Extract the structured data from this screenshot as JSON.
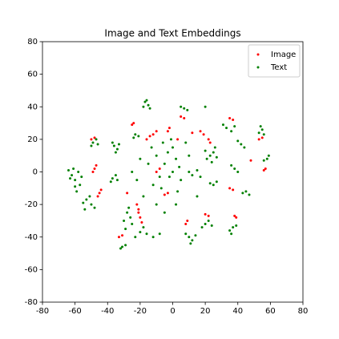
{
  "chart_data": {
    "type": "scatter",
    "title": "Image and Text Embeddings",
    "xlim": [
      -80,
      80
    ],
    "ylim": [
      -80,
      80
    ],
    "xticks": [
      -80,
      -60,
      -40,
      -20,
      0,
      20,
      40,
      60,
      80
    ],
    "yticks": [
      -80,
      -60,
      -40,
      -20,
      0,
      20,
      40,
      60,
      80
    ],
    "legend": "upper right",
    "series": [
      {
        "name": "Image",
        "color": "#ff0000",
        "x": [
          -48,
          -47,
          -49,
          -45,
          -44,
          -46,
          -50,
          -48,
          -25,
          -24,
          -12,
          -10,
          -14,
          -2,
          -3,
          5,
          7,
          17,
          19,
          22,
          23,
          35,
          37,
          53,
          55,
          57,
          56,
          -22,
          -21,
          -20,
          -19,
          -21,
          -5,
          -3,
          8,
          9,
          20,
          22,
          38,
          39,
          35,
          37,
          48,
          -33,
          -31,
          -28,
          -10,
          -8,
          3,
          12,
          -16
        ],
        "values": [
          2,
          4,
          0,
          -13,
          -11,
          -15,
          20,
          21,
          29,
          30,
          23,
          25,
          22,
          27,
          25,
          34,
          33,
          25,
          23,
          20,
          18,
          33,
          32,
          20,
          21,
          2,
          1,
          -20,
          -23,
          -28,
          -31,
          -25,
          -14,
          -13,
          -32,
          -30,
          -26,
          -27,
          -27,
          -28,
          -10,
          -11,
          7,
          -40,
          -39,
          -13,
          0,
          2,
          20,
          24,
          20
        ]
      },
      {
        "name": "Text",
        "color": "#008000",
        "x": [
          -62,
          -60,
          -58,
          -61,
          -57,
          -59,
          -63,
          -56,
          -60,
          -64,
          -53,
          -50,
          -55,
          -51,
          -48,
          -54,
          -49,
          -47,
          -50,
          -46,
          -36,
          -34,
          -37,
          -33,
          -35,
          -37,
          -35,
          -38,
          -34,
          -28,
          -26,
          -30,
          -27,
          -25,
          -29,
          -20,
          -16,
          -23,
          -12,
          -18,
          -8,
          -31,
          -29,
          -32,
          -23,
          -21,
          -24,
          -17,
          -15,
          -18,
          -14,
          -16,
          7,
          5,
          9,
          -10,
          -5,
          0,
          -3,
          2,
          -8,
          5,
          -15,
          -12,
          -2,
          0,
          3,
          -20,
          -6,
          -1,
          -18,
          -10,
          -5,
          2,
          -25,
          -22,
          4,
          -7,
          10,
          8,
          -13,
          10,
          12,
          8,
          14,
          11,
          20,
          22,
          18,
          24,
          23,
          25,
          21,
          27,
          24,
          20,
          26,
          33,
          36,
          31,
          38,
          42,
          44,
          40,
          38,
          40,
          36,
          45,
          47,
          43,
          37,
          35,
          39,
          36,
          55,
          54,
          56,
          53,
          58,
          56,
          59,
          25,
          23,
          27,
          10,
          12,
          15,
          17,
          20,
          15
        ],
        "values": [
          -2,
          -5,
          0,
          2,
          -8,
          -12,
          -4,
          -3,
          -9,
          1,
          -17,
          -20,
          -19,
          -15,
          -22,
          -23,
          18,
          20,
          16,
          17,
          16,
          14,
          18,
          17,
          12,
          -4,
          -2,
          -6,
          -5,
          -25,
          -28,
          -30,
          -22,
          -32,
          -35,
          -37,
          -38,
          -40,
          -40,
          -34,
          -38,
          -46,
          -45,
          -47,
          23,
          22,
          21,
          43,
          41,
          40,
          39,
          44,
          39,
          40,
          38,
          10,
          5,
          0,
          12,
          8,
          -3,
          -5,
          5,
          -8,
          -3,
          15,
          -12,
          8,
          18,
          20,
          -15,
          -20,
          -25,
          -20,
          0,
          -5,
          3,
          -10,
          10,
          18,
          15,
          -40,
          -42,
          -38,
          -39,
          -44,
          -32,
          -30,
          -34,
          -33,
          10,
          12,
          8,
          9,
          6,
          13,
          15,
          27,
          25,
          29,
          28,
          17,
          15,
          19,
          2,
          0,
          4,
          -12,
          -14,
          -13,
          -34,
          -36,
          -33,
          -38,
          26,
          28,
          23,
          24,
          8,
          7,
          10,
          -8,
          -7,
          -6,
          0,
          -2,
          1,
          -3,
          40,
          -15
        ]
      }
    ]
  }
}
